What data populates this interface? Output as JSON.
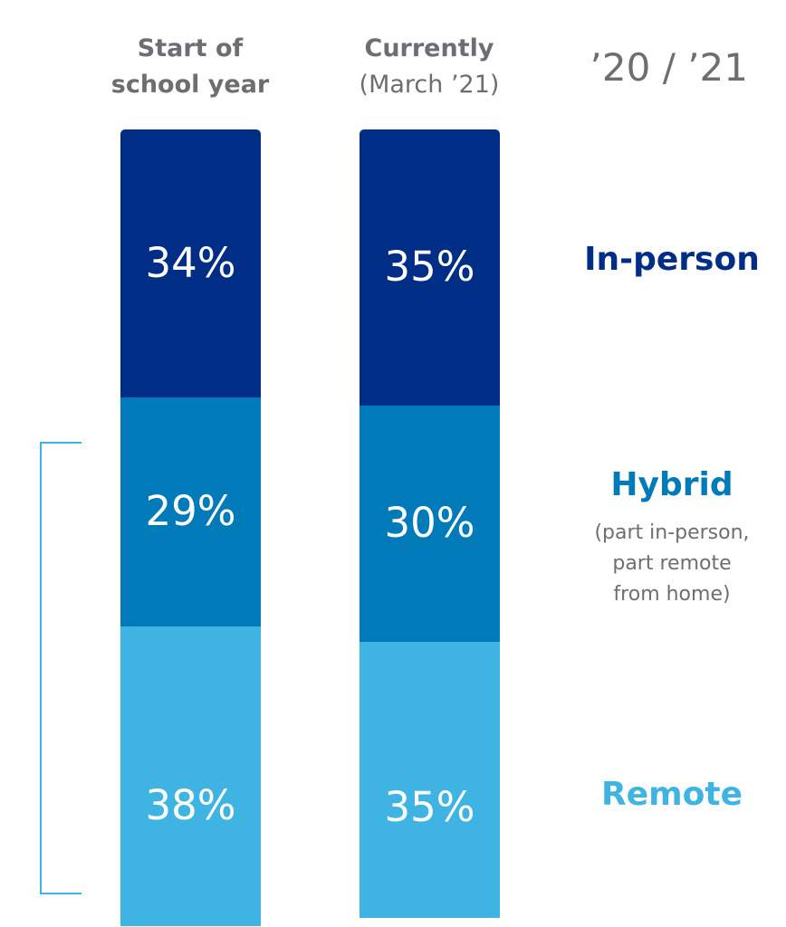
{
  "columns": [
    {
      "title": "Start of",
      "title2": "school year"
    },
    {
      "title": "Currently",
      "subtitle": "(March ’21)"
    }
  ],
  "year_label": "’20 / ’21",
  "categories": {
    "inperson": {
      "label": "In-person",
      "color": "#002d85"
    },
    "hybrid": {
      "label": "Hybrid",
      "desc": [
        "(part in-person,",
        "part remote",
        "from home)"
      ],
      "color": "#007ab8"
    },
    "remote": {
      "label": "Remote",
      "color": "#3fb4e3"
    }
  },
  "chart_data": {
    "type": "bar",
    "stacked": true,
    "categories": [
      "Start of school year",
      "Currently (March ’21)"
    ],
    "series": [
      {
        "name": "In-person",
        "values": [
          34,
          35
        ],
        "labels": [
          "34%",
          "35%"
        ],
        "color": "#002d85"
      },
      {
        "name": "Hybrid",
        "values": [
          29,
          30
        ],
        "labels": [
          "29%",
          "30%"
        ],
        "color": "#007ab8"
      },
      {
        "name": "Remote",
        "values": [
          38,
          35
        ],
        "labels": [
          "38%",
          "35%"
        ],
        "color": "#3fb4e3"
      }
    ],
    "unit": "%",
    "legend": "right"
  }
}
